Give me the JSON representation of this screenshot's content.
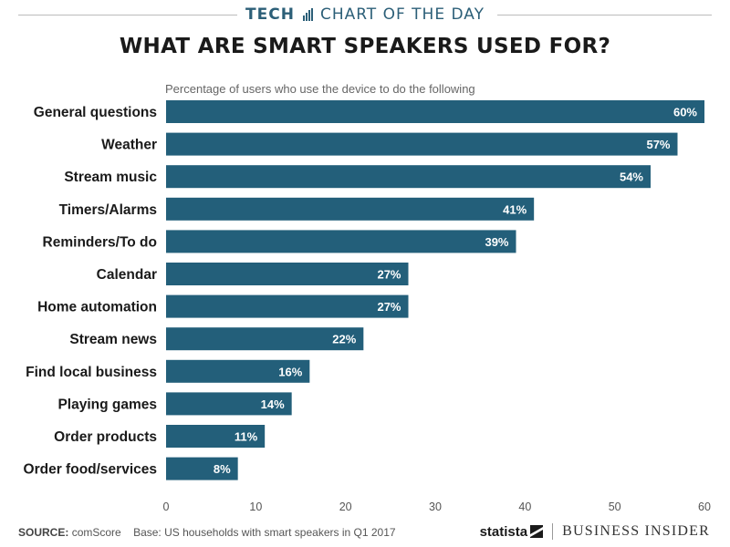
{
  "header": {
    "brand": "TECH",
    "series": "CHART OF THE DAY",
    "title": "WHAT ARE SMART SPEAKERS USED FOR?",
    "subtitle": "Percentage of users who use the device to do the following"
  },
  "chart_data": {
    "type": "bar",
    "orientation": "horizontal",
    "title": "WHAT ARE SMART SPEAKERS USED FOR?",
    "subtitle": "Percentage of users who use the device to do the following",
    "xlabel": "",
    "ylabel": "",
    "xlim": [
      0,
      60
    ],
    "xticks": [
      0,
      10,
      20,
      30,
      40,
      50,
      60
    ],
    "categories": [
      "General questions",
      "Weather",
      "Stream music",
      "Timers/Alarms",
      "Reminders/To do",
      "Calendar",
      "Home automation",
      "Stream news",
      "Find local business",
      "Playing games",
      "Order products",
      "Order food/services"
    ],
    "values": [
      60,
      57,
      54,
      41,
      39,
      27,
      27,
      22,
      16,
      14,
      11,
      8
    ],
    "value_labels": [
      "60%",
      "57%",
      "54%",
      "41%",
      "39%",
      "27%",
      "27%",
      "22%",
      "16%",
      "14%",
      "11%",
      "8%"
    ],
    "bar_color": "#235f7a",
    "grid": false
  },
  "footer": {
    "source_key": "SOURCE:",
    "source": "comScore",
    "base": "Base: US households with smart speakers in Q1 2017",
    "logo_statista": "statista",
    "logo_bi": "BUSINESS INSIDER"
  },
  "colors": {
    "accent": "#2c5f78",
    "bar": "#235f7a"
  }
}
